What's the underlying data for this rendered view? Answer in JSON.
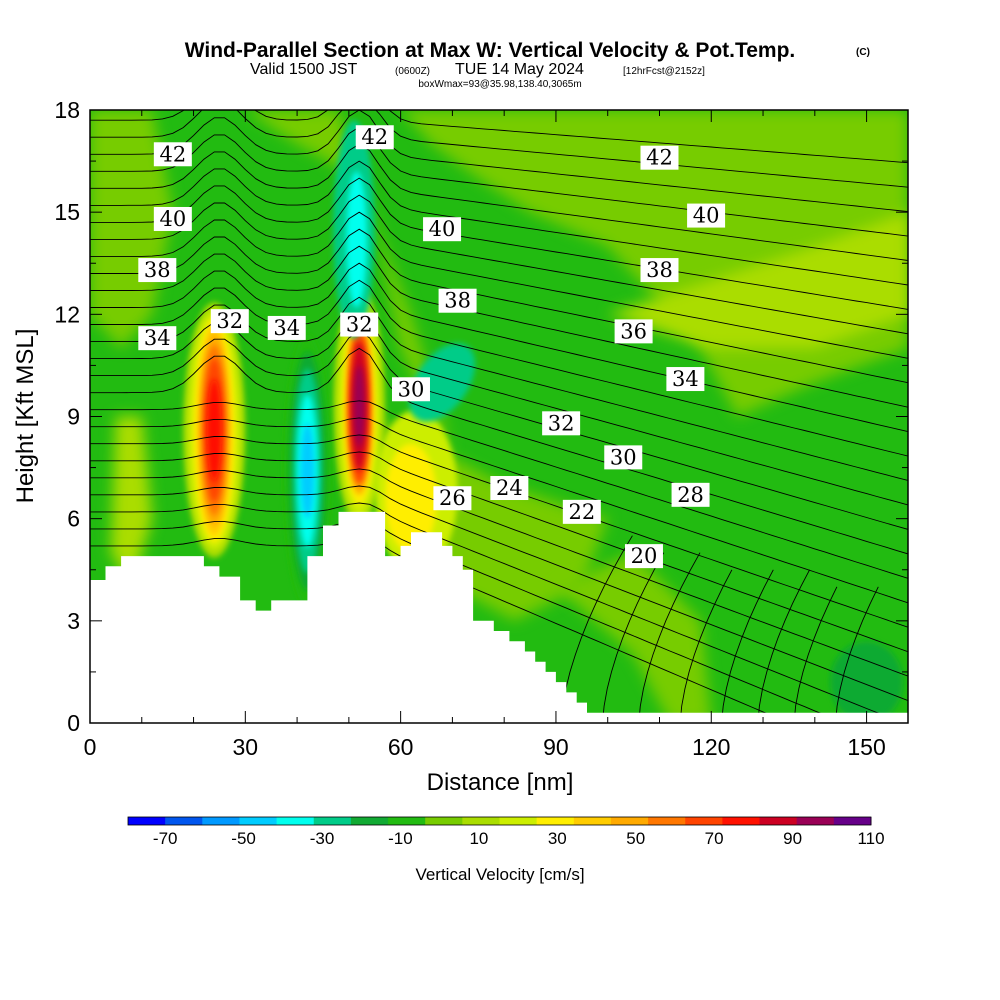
{
  "title": {
    "main": "Wind-Parallel Section at Max W: Vertical Velocity & Pot.Temp.",
    "main_suffix": "(C)",
    "line2_a": "Valid 1500 JST",
    "line2_b": "(0600Z)",
    "line2_c": "TUE 14 May 2024",
    "line2_d": "[12hrFcst@2152z]",
    "line3": "boxWmax=93@35.98,138.40,3065m"
  },
  "chart_data": {
    "type": "heatmap",
    "title": "Wind-Parallel Section at Max W: Vertical Velocity & Pot.Temp.",
    "xlabel": "Distance [nm]",
    "ylabel": "Height [Kft MSL]",
    "xlim": [
      0,
      158
    ],
    "ylim": [
      0,
      18
    ],
    "x_ticks": [
      0,
      30,
      60,
      90,
      120,
      150
    ],
    "y_ticks": [
      0,
      3,
      6,
      9,
      12,
      15,
      18
    ],
    "colorbar": {
      "label": "Vertical Velocity [cm/s]",
      "levels": [
        -70,
        -60,
        -50,
        -40,
        -30,
        -20,
        -10,
        0,
        10,
        20,
        30,
        40,
        50,
        60,
        70,
        80,
        90,
        100,
        110
      ],
      "tick_labels": [
        -70,
        -50,
        -30,
        -10,
        10,
        30,
        50,
        70,
        90,
        110
      ],
      "colors": [
        "#0000ff",
        "#0055ee",
        "#0099ff",
        "#00ccff",
        "#00ffee",
        "#00cc88",
        "#11aa33",
        "#22bb11",
        "#77cc00",
        "#aadd00",
        "#ccee00",
        "#ffee00",
        "#ffcc00",
        "#ffaa00",
        "#ff7700",
        "#ff4400",
        "#ff1100",
        "#cc0022",
        "#990055",
        "#660088"
      ]
    },
    "terrain_profile": {
      "x": [
        0,
        3,
        3,
        6,
        6,
        9,
        9,
        22,
        22,
        25,
        25,
        29,
        29,
        32,
        32,
        35,
        35,
        42,
        42,
        45,
        45,
        48,
        48,
        57,
        57,
        60,
        60,
        62,
        62,
        68,
        68,
        70,
        70,
        72,
        72,
        74,
        74,
        78,
        78,
        81,
        81,
        84,
        84,
        86,
        86,
        88,
        88,
        90,
        90,
        92,
        92,
        94,
        94,
        96,
        96,
        98,
        98,
        100,
        100,
        158
      ],
      "y": [
        4.2,
        4.2,
        4.6,
        4.6,
        4.9,
        4.9,
        4.9,
        4.9,
        4.6,
        4.6,
        4.3,
        4.3,
        3.6,
        3.6,
        3.3,
        3.3,
        3.6,
        3.6,
        4.9,
        4.9,
        5.8,
        5.8,
        6.2,
        6.2,
        4.9,
        4.9,
        5.2,
        5.2,
        5.6,
        5.6,
        5.2,
        5.2,
        4.9,
        4.9,
        4.5,
        4.5,
        3.0,
        3.0,
        2.7,
        2.7,
        2.4,
        2.4,
        2.1,
        2.1,
        1.8,
        1.8,
        1.5,
        1.5,
        1.2,
        1.2,
        0.9,
        0.9,
        0.6,
        0.6,
        0.3,
        0.3,
        0.3,
        0.3,
        0.3,
        0.3
      ]
    },
    "updraft_cores": [
      {
        "x": 24,
        "y": 8.8,
        "w_max": 80
      },
      {
        "x": 52,
        "y": 9.5,
        "w_max": 110
      }
    ],
    "downdraft_cores": [
      {
        "x": 42,
        "y": 7.5,
        "w_min": -50
      },
      {
        "x": 51,
        "y": 14.2,
        "w_min": -30
      },
      {
        "x": 70,
        "y": 9.3,
        "w_min": -30
      }
    ],
    "theta_contour_labels": [
      {
        "value": "42",
        "x": 16,
        "y": 16.7
      },
      {
        "value": "42",
        "x": 55,
        "y": 17.2
      },
      {
        "value": "42",
        "x": 110,
        "y": 16.6
      },
      {
        "value": "40",
        "x": 16,
        "y": 14.8
      },
      {
        "value": "40",
        "x": 68,
        "y": 14.5
      },
      {
        "value": "40",
        "x": 119,
        "y": 14.9
      },
      {
        "value": "38",
        "x": 13,
        "y": 13.3
      },
      {
        "value": "38",
        "x": 71,
        "y": 12.4
      },
      {
        "value": "38",
        "x": 110,
        "y": 13.3
      },
      {
        "value": "36",
        "x": 105,
        "y": 11.5
      },
      {
        "value": "34",
        "x": 13,
        "y": 11.3
      },
      {
        "value": "34",
        "x": 38,
        "y": 11.6
      },
      {
        "value": "34",
        "x": 115,
        "y": 10.1
      },
      {
        "value": "32",
        "x": 27,
        "y": 11.8
      },
      {
        "value": "32",
        "x": 52,
        "y": 11.7
      },
      {
        "value": "32",
        "x": 91,
        "y": 8.8
      },
      {
        "value": "30",
        "x": 62,
        "y": 9.8
      },
      {
        "value": "30",
        "x": 103,
        "y": 7.8
      },
      {
        "value": "28",
        "x": 116,
        "y": 6.7
      },
      {
        "value": "26",
        "x": 70,
        "y": 6.6
      },
      {
        "value": "24",
        "x": 81,
        "y": 6.9
      },
      {
        "value": "22",
        "x": 95,
        "y": 6.2
      },
      {
        "value": "20",
        "x": 107,
        "y": 4.9
      }
    ]
  }
}
